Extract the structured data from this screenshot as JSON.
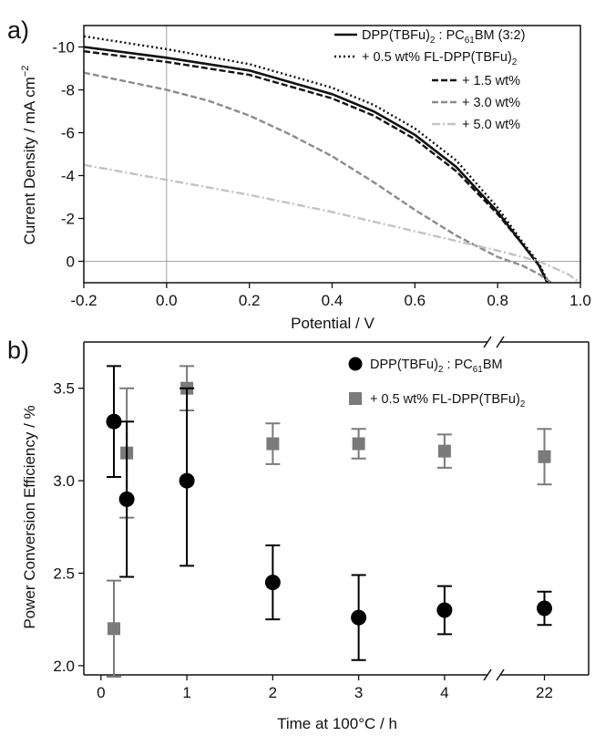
{
  "chart_data": [
    {
      "panel_label": "a)",
      "type": "line",
      "xlabel": "Potential / V",
      "ylabel": "Current Density  / mA cm",
      "ylabel_sup": "−2",
      "xlim": [
        -0.2,
        1.0
      ],
      "ylim": [
        1.0,
        -11.0
      ],
      "x_ticks": [
        -0.2,
        0.0,
        0.2,
        0.4,
        0.6,
        0.8,
        1.0
      ],
      "x_tick_labels": [
        "-0.2",
        "0.0",
        "0.2",
        "0.4",
        "0.6",
        "0.8",
        "1.0"
      ],
      "y_ticks": [
        0,
        -2,
        -4,
        -6,
        -8,
        -10
      ],
      "y_tick_labels": [
        "0",
        "-2",
        "-4",
        "-6",
        "-8",
        "-10"
      ],
      "reference_lines": {
        "x": 0,
        "y": 0
      },
      "legend_position": "top-right",
      "series": [
        {
          "legend": {
            "main": "DPP(TBFu)",
            "sub": "2",
            "mid": " : PC",
            "sub2": "61",
            "tail": "BM (3:2)"
          },
          "color": "#111111",
          "dash": "solid",
          "x": [
            -0.2,
            0.0,
            0.2,
            0.4,
            0.5,
            0.6,
            0.7,
            0.8,
            0.86,
            0.9,
            0.92
          ],
          "y": [
            -10.0,
            -9.5,
            -8.9,
            -7.8,
            -7.0,
            -5.9,
            -4.4,
            -2.3,
            -0.8,
            0.2,
            1.0
          ]
        },
        {
          "legend": {
            "main": "+ 0.5 wt% FL-DPP(TBFu)",
            "sub": "2"
          },
          "color": "#111111",
          "dash": "dot",
          "x": [
            -0.2,
            0.0,
            0.2,
            0.4,
            0.5,
            0.6,
            0.7,
            0.8,
            0.86,
            0.9,
            0.92
          ],
          "y": [
            -10.5,
            -9.9,
            -9.2,
            -8.1,
            -7.3,
            -6.2,
            -4.7,
            -2.5,
            -0.9,
            0.1,
            0.9
          ]
        },
        {
          "legend": {
            "main": "+ 1.5 wt%"
          },
          "color": "#111111",
          "dash": "dash",
          "x": [
            -0.2,
            0.0,
            0.2,
            0.4,
            0.5,
            0.6,
            0.7,
            0.8,
            0.86,
            0.9,
            0.92
          ],
          "y": [
            -9.8,
            -9.3,
            -8.7,
            -7.6,
            -6.8,
            -5.7,
            -4.2,
            -2.2,
            -0.8,
            0.2,
            1.0
          ]
        },
        {
          "legend": {
            "main": "+ 3.0 wt%"
          },
          "color": "#8c8c8c",
          "dash": "dash",
          "x": [
            -0.2,
            0.0,
            0.1,
            0.2,
            0.3,
            0.4,
            0.5,
            0.6,
            0.7,
            0.8,
            0.86,
            0.9,
            0.93
          ],
          "y": [
            -8.8,
            -8.0,
            -7.5,
            -6.8,
            -5.9,
            -4.9,
            -3.7,
            -2.4,
            -1.2,
            -0.2,
            0.2,
            0.6,
            1.0
          ]
        },
        {
          "legend": {
            "main": "+ 5.0 wt%"
          },
          "color": "#c3c3c3",
          "dash": "dashdot",
          "x": [
            -0.2,
            0.0,
            0.2,
            0.4,
            0.6,
            0.8,
            0.9,
            0.97,
            1.0
          ],
          "y": [
            -4.5,
            -3.8,
            -3.1,
            -2.3,
            -1.4,
            -0.5,
            0.0,
            0.6,
            1.0
          ]
        }
      ]
    },
    {
      "panel_label": "b)",
      "type": "scatter",
      "xlabel": "Time at 100°C / h",
      "ylabel": "Power Conversion Efficiency / %",
      "ylim": [
        1.95,
        3.75
      ],
      "y_ticks": [
        2.0,
        2.5,
        3.0,
        3.5
      ],
      "y_tick_labels": [
        "2.0",
        "2.5",
        "3.0",
        "3.5"
      ],
      "x_ticks": [
        0,
        1,
        2,
        3,
        4,
        22
      ],
      "x_tick_labels": [
        "0",
        "1",
        "2",
        "3",
        "4",
        "22"
      ],
      "x_axis_break": {
        "from": 4.5,
        "to": 21.5
      },
      "legend_position": "top-right",
      "series": [
        {
          "legend": {
            "main": "DPP(TBFu)",
            "sub": "2",
            "mid": " : PC",
            "sub2": "61",
            "tail": "BM"
          },
          "marker": "circle",
          "color": "#000000",
          "points": [
            {
              "x": 0.15,
              "y": 3.32,
              "err_low": 3.02,
              "err_high": 3.62
            },
            {
              "x": 0.3,
              "y": 2.9,
              "err_low": 2.48,
              "err_high": 3.32
            },
            {
              "x": 1.0,
              "y": 3.0,
              "err_low": 2.54,
              "err_high": 3.5
            },
            {
              "x": 2.0,
              "y": 2.45,
              "err_low": 2.25,
              "err_high": 2.65
            },
            {
              "x": 3.0,
              "y": 2.26,
              "err_low": 2.03,
              "err_high": 2.49
            },
            {
              "x": 4.0,
              "y": 2.3,
              "err_low": 2.17,
              "err_high": 2.43
            },
            {
              "x": 22.0,
              "y": 2.31,
              "err_low": 2.22,
              "err_high": 2.4
            }
          ]
        },
        {
          "legend": {
            "main": "+ 0.5 wt% FL-DPP(TBFu)",
            "sub": "2"
          },
          "marker": "square",
          "color": "#7a7a7a",
          "points": [
            {
              "x": 0.15,
              "y": 2.2,
              "err_low": 1.94,
              "err_high": 2.46
            },
            {
              "x": 0.3,
              "y": 3.15,
              "err_low": 2.8,
              "err_high": 3.5
            },
            {
              "x": 1.0,
              "y": 3.5,
              "err_low": 3.38,
              "err_high": 3.62
            },
            {
              "x": 2.0,
              "y": 3.2,
              "err_low": 3.09,
              "err_high": 3.31
            },
            {
              "x": 3.0,
              "y": 3.2,
              "err_low": 3.12,
              "err_high": 3.28
            },
            {
              "x": 4.0,
              "y": 3.16,
              "err_low": 3.07,
              "err_high": 3.25
            },
            {
              "x": 22.0,
              "y": 3.13,
              "err_low": 2.98,
              "err_high": 3.28
            }
          ]
        }
      ]
    }
  ]
}
